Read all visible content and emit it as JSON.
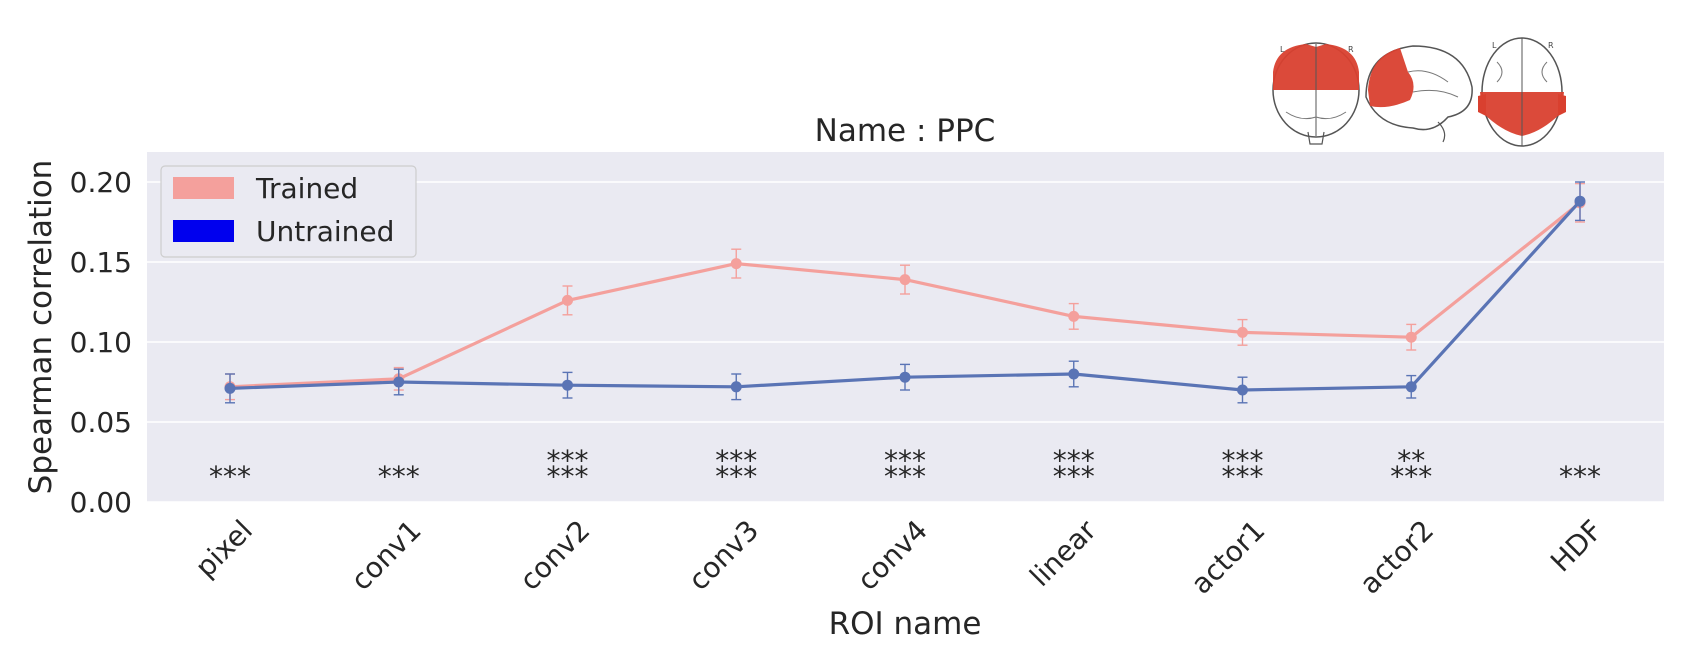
{
  "chart_data": {
    "type": "line",
    "title": "Name : PPC",
    "xlabel": "ROI name",
    "ylabel": "Spearman correlation",
    "ylim": [
      0,
      0.22
    ],
    "yticks": [
      "0.00",
      "0.05",
      "0.10",
      "0.15",
      "0.20"
    ],
    "categories": [
      "pixel",
      "conv1",
      "conv2",
      "conv3",
      "conv4",
      "linear",
      "actor1",
      "actor2",
      "HDF"
    ],
    "grid": true,
    "legend_position": "top-left",
    "series": [
      {
        "name": "Trained",
        "color": "#f4a09c",
        "legend_color": "#f4a09c",
        "values": [
          0.072,
          0.077,
          0.126,
          0.149,
          0.139,
          0.116,
          0.106,
          0.103,
          0.187
        ],
        "errors": [
          0.008,
          0.007,
          0.009,
          0.009,
          0.009,
          0.008,
          0.008,
          0.008,
          0.012
        ]
      },
      {
        "name": "Untrained",
        "color": "#5a74b5",
        "legend_color": "#0000ee",
        "values": [
          0.071,
          0.075,
          0.073,
          0.072,
          0.078,
          0.08,
          0.07,
          0.072,
          0.188
        ],
        "errors": [
          0.009,
          0.008,
          0.008,
          0.008,
          0.008,
          0.008,
          0.008,
          0.007,
          0.012
        ]
      }
    ],
    "significance": [
      [
        "***"
      ],
      [
        "***"
      ],
      [
        "***",
        "***"
      ],
      [
        "***",
        "***"
      ],
      [
        "***",
        "***"
      ],
      [
        "***",
        "***"
      ],
      [
        "***",
        "***"
      ],
      [
        "**",
        "***"
      ],
      [
        "***"
      ]
    ]
  },
  "brain_inset": {
    "icon": "brain-glass-views-icon",
    "highlight_color": "#d9402f"
  }
}
